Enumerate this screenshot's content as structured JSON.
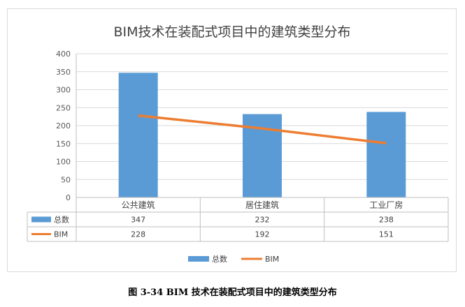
{
  "chart_data": {
    "type": "bar",
    "title": "BIM技术在装配式项目中的建筑类型分布",
    "categories": [
      "公共建筑",
      "居住建筑",
      "工业厂房"
    ],
    "series": [
      {
        "name": "总数",
        "kind": "bar",
        "values": [
          347,
          232,
          238
        ],
        "color": "#5b9bd5"
      },
      {
        "name": "BIM",
        "kind": "line",
        "values": [
          228,
          192,
          151
        ],
        "color": "#ed7d31"
      }
    ],
    "ylim": [
      0,
      400
    ],
    "yticks": [
      "0",
      "50",
      "100",
      "150",
      "200",
      "250",
      "300",
      "350",
      "400"
    ],
    "grid": true,
    "legend": "bottom",
    "data_table": true
  },
  "caption": "图 3-34 BIM 技术在装配式项目中的建筑类型分布"
}
